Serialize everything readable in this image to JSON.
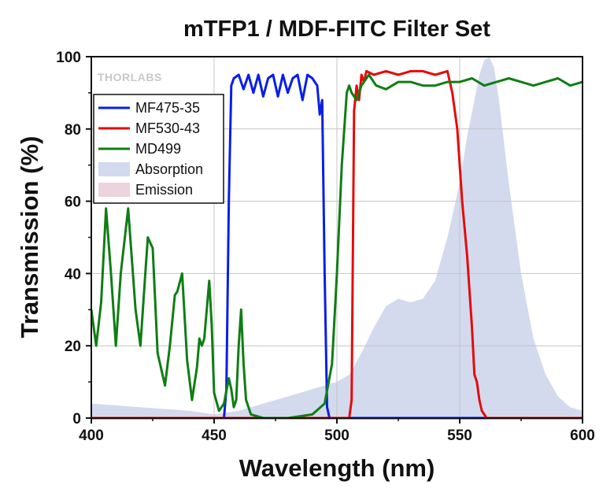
{
  "chart_data": {
    "type": "line",
    "title": "mTFP1 / MDF-FITC Filter Set",
    "xlabel": "Wavelength (nm)",
    "ylabel": "Transmission (%)",
    "xlim": [
      400,
      600
    ],
    "ylim": [
      0,
      100
    ],
    "xticks": [
      400,
      450,
      500,
      550,
      600
    ],
    "yticks": [
      0,
      20,
      40,
      60,
      80,
      100
    ],
    "grid": true,
    "legend_position": "top-left",
    "watermark": "THORLABS",
    "series": [
      {
        "name": "MF475-35",
        "color": "#0a1ee6",
        "kind": "line",
        "x": [
          400,
          454,
          455,
          456,
          457,
          458,
          460,
          462,
          464,
          466,
          468,
          470,
          472,
          474,
          476,
          478,
          480,
          482,
          484,
          486,
          488,
          490,
          492,
          493,
          494,
          495,
          496,
          497,
          600
        ],
        "y": [
          0,
          0,
          8,
          60,
          92,
          94,
          95,
          91,
          95,
          90,
          95,
          89,
          94,
          95,
          89,
          95,
          90,
          94,
          95,
          88,
          95,
          94,
          92,
          84,
          88,
          40,
          3,
          0,
          0
        ]
      },
      {
        "name": "MF530-43",
        "color": "#e60a0a",
        "kind": "line",
        "x": [
          400,
          505,
          506,
          507,
          508,
          509,
          510,
          511,
          512,
          515,
          520,
          525,
          530,
          535,
          540,
          545,
          547,
          549,
          551,
          553,
          555,
          556,
          557,
          558,
          559,
          560,
          561,
          600
        ],
        "y": [
          0,
          0,
          5,
          85,
          92,
          88,
          95,
          93,
          96,
          95,
          96,
          95,
          96,
          96,
          95,
          96,
          90,
          80,
          60,
          45,
          25,
          12,
          10,
          5,
          2,
          1,
          0,
          0
        ]
      },
      {
        "name": "MD499",
        "color": "#0f7d14",
        "kind": "line",
        "x": [
          400,
          402,
          404,
          406,
          408,
          410,
          412,
          415,
          418,
          420,
          422,
          423,
          425,
          427,
          430,
          432,
          434,
          435,
          437,
          439,
          441,
          443,
          444,
          445,
          446,
          448,
          449,
          450,
          452,
          454,
          456,
          457,
          458,
          459,
          460,
          461,
          462,
          463,
          465,
          470,
          480,
          490,
          495,
          498,
          500,
          502,
          504,
          505,
          506,
          508,
          510,
          513,
          516,
          520,
          525,
          530,
          535,
          540,
          545,
          550,
          555,
          560,
          565,
          570,
          575,
          580,
          585,
          590,
          595,
          600
        ],
        "y": [
          30,
          20,
          32,
          58,
          40,
          20,
          40,
          58,
          30,
          20,
          40,
          50,
          47,
          18,
          9,
          20,
          34,
          35,
          40,
          16,
          5,
          14,
          22,
          20,
          22,
          38,
          26,
          7,
          2,
          4,
          11,
          8,
          3,
          5,
          20,
          30,
          15,
          5,
          1,
          0,
          0,
          1,
          4,
          15,
          40,
          70,
          90,
          92,
          90,
          88,
          92,
          95,
          92,
          91,
          93,
          93,
          92,
          92,
          93,
          93,
          94,
          92,
          93,
          94,
          93,
          92,
          93,
          94,
          92,
          93
        ]
      },
      {
        "name": "Absorption",
        "color": "#d3daee",
        "kind": "area",
        "x": [
          400,
          420,
          440,
          450,
          460,
          470,
          480,
          490,
          500,
          505,
          510,
          515,
          520,
          525,
          530,
          535,
          540,
          545,
          550,
          553,
          556,
          558,
          560,
          562,
          564,
          566,
          570,
          575,
          580,
          585,
          590,
          595,
          600
        ],
        "y": [
          4,
          3,
          2,
          1,
          2,
          4,
          6,
          8,
          10,
          12,
          18,
          25,
          31,
          33,
          32,
          33,
          38,
          50,
          65,
          78,
          88,
          95,
          99,
          100,
          97,
          88,
          65,
          40,
          22,
          12,
          6,
          3,
          2
        ]
      },
      {
        "name": "Emission",
        "color": "#ecd3de",
        "kind": "area",
        "x": [],
        "y": []
      }
    ]
  }
}
